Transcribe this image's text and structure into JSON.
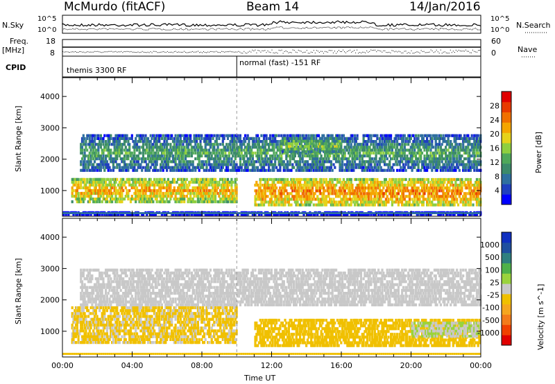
{
  "header": {
    "station": "McMurdo (fitACF)",
    "beam": "Beam 14",
    "date": "14/Jan/2016"
  },
  "status_panel": {
    "nsky_label": "N.Sky",
    "nsearch_label": "N.Search",
    "noise_tick_top": "10^5",
    "noise_tick_bottom": "10^0",
    "freq_label": "Freq.",
    "freq_unit": "[MHz]",
    "freq_ticks": [
      "18",
      "8"
    ],
    "nave_label": "Nave",
    "nave_ticks": [
      "60",
      "0"
    ],
    "cpid_label": "CPID",
    "cpid_segments": [
      {
        "label": "themis 3300 RF",
        "start_hour": 0,
        "end_hour": 10
      },
      {
        "label": "normal (fast) -151 RF",
        "start_hour": 10,
        "end_hour": 24
      }
    ]
  },
  "x_axis": {
    "label": "Time UT",
    "ticks": [
      "00:00",
      "04:00",
      "08:00",
      "12:00",
      "16:00",
      "20:00",
      "00:00"
    ],
    "range_hours": [
      0,
      24
    ]
  },
  "colors": {
    "power": [
      "#0000ff",
      "#1f3fbf",
      "#2f6f9f",
      "#3c8a6a",
      "#4fa85a",
      "#8fcf3f",
      "#e6d21a",
      "#f5a500",
      "#f07000",
      "#e83a00",
      "#e00000"
    ],
    "velocity": [
      "#e00000",
      "#f04000",
      "#f37b1a",
      "#f5a61f",
      "#f0c000",
      "#c8c8c8",
      "#9ad33c",
      "#4fb14a",
      "#2f7f7f",
      "#1f4f9f",
      "#1030c0"
    ]
  },
  "chart_data": [
    {
      "type": "heatmap",
      "panel": "power",
      "xlabel": "Time UT",
      "ylabel": "Slant Range [km]",
      "xlim": [
        0,
        24
      ],
      "ylim": [
        180,
        4600
      ],
      "yticks": [
        1000,
        2000,
        3000,
        4000
      ],
      "colorbar": {
        "label": "Power [dB]",
        "ticks": [
          "28",
          "24",
          "20",
          "16",
          "12",
          "8",
          "4"
        ],
        "range": [
          0,
          30
        ]
      },
      "regions": [
        {
          "t0": 0.5,
          "t1": 10.0,
          "r0": 600,
          "r1": 1400,
          "value": 22
        },
        {
          "t0": 11.0,
          "t1": 24.0,
          "r0": 500,
          "r1": 1400,
          "value": 24
        },
        {
          "t0": 1.0,
          "t1": 24.0,
          "r0": 1600,
          "r1": 2800,
          "value": 12
        },
        {
          "t0": 12.5,
          "t1": 16.0,
          "r0": 2200,
          "r1": 2700,
          "value": 16
        },
        {
          "t0": 0,
          "t1": 24,
          "r0": 200,
          "r1": 300,
          "value": 6
        }
      ]
    },
    {
      "type": "heatmap",
      "panel": "velocity",
      "xlabel": "Time UT",
      "ylabel": "Slant Range [km]",
      "xlim": [
        0,
        24
      ],
      "ylim": [
        180,
        4600
      ],
      "yticks": [
        1000,
        2000,
        3000,
        4000
      ],
      "colorbar": {
        "label": "Velocity [m s^-1]",
        "ticks": [
          "1000",
          "500",
          "100",
          "25",
          "-25",
          "-100",
          "-500",
          "-1000"
        ],
        "range": [
          -1000,
          1000
        ]
      },
      "regions": [
        {
          "t0": 0.5,
          "t1": 10.0,
          "r0": 600,
          "r1": 1800,
          "value": -150
        },
        {
          "t0": 11.0,
          "t1": 24.0,
          "r0": 500,
          "r1": 1400,
          "value": -200
        },
        {
          "t0": 1.0,
          "t1": 24.0,
          "r0": 1800,
          "r1": 3000,
          "value": 0
        },
        {
          "t0": 20.0,
          "t1": 24.0,
          "r0": 800,
          "r1": 1300,
          "value": 80
        }
      ]
    }
  ]
}
